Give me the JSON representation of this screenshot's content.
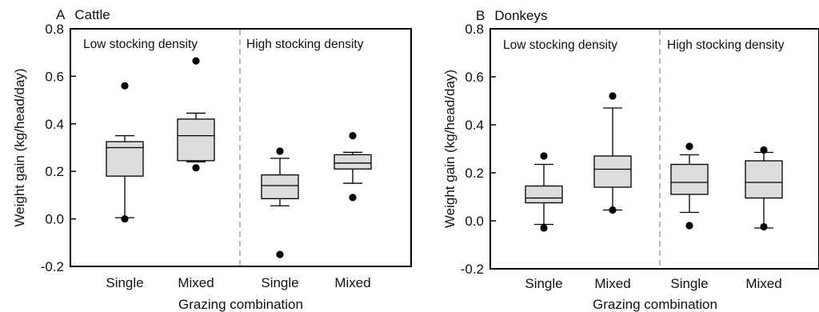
{
  "chart_data": [
    {
      "type": "box",
      "panel_letter": "A",
      "title": "Cattle",
      "ylabel": "Weight gain (kg/head/day)",
      "xlabel": "Grazing combination",
      "ylim": [
        -0.2,
        0.8
      ],
      "yticks": [
        -0.2,
        0.0,
        0.2,
        0.4,
        0.6,
        0.8
      ],
      "ytick_labels": [
        "-0.2",
        "0.0",
        "0.2",
        "0.4",
        "0.6",
        "0.8"
      ],
      "regions": [
        "Low stocking density",
        "High stocking density"
      ],
      "boxes": [
        {
          "label": "Single",
          "whisker_low": 0.005,
          "q1": 0.18,
          "median": 0.3,
          "q3": 0.325,
          "whisker_high": 0.35,
          "outliers": [
            0.56,
            0.0
          ]
        },
        {
          "label": "Mixed",
          "whisker_low": 0.24,
          "q1": 0.245,
          "median": 0.35,
          "q3": 0.42,
          "whisker_high": 0.445,
          "outliers": [
            0.665,
            0.215
          ]
        },
        {
          "label": "Single",
          "whisker_low": 0.055,
          "q1": 0.085,
          "median": 0.14,
          "q3": 0.185,
          "whisker_high": 0.255,
          "outliers": [
            0.285,
            -0.15
          ]
        },
        {
          "label": "Mixed",
          "whisker_low": 0.15,
          "q1": 0.21,
          "median": 0.235,
          "q3": 0.27,
          "whisker_high": 0.28,
          "outliers": [
            0.35,
            0.09
          ]
        }
      ],
      "legend": "none"
    },
    {
      "type": "box",
      "panel_letter": "B",
      "title": "Donkeys",
      "ylabel": "Weight gain (kg/head/day)",
      "xlabel": "Grazing combination",
      "ylim": [
        -0.2,
        0.8
      ],
      "yticks": [
        -0.2,
        0.0,
        0.2,
        0.4,
        0.6,
        0.8
      ],
      "ytick_labels": [
        "-0.2",
        "0.0",
        "0.2",
        "0.4",
        "0.6",
        "0.8"
      ],
      "regions": [
        "Low stocking density",
        "High stocking density"
      ],
      "boxes": [
        {
          "label": "Single",
          "whisker_low": -0.015,
          "q1": 0.075,
          "median": 0.095,
          "q3": 0.145,
          "whisker_high": 0.235,
          "outliers": [
            0.27,
            -0.03
          ]
        },
        {
          "label": "Mixed",
          "whisker_low": 0.045,
          "q1": 0.14,
          "median": 0.215,
          "q3": 0.27,
          "whisker_high": 0.47,
          "outliers": [
            0.52,
            0.045
          ]
        },
        {
          "label": "Single",
          "whisker_low": 0.035,
          "q1": 0.11,
          "median": 0.16,
          "q3": 0.235,
          "whisker_high": 0.275,
          "outliers": [
            0.31,
            -0.02
          ]
        },
        {
          "label": "Mixed",
          "whisker_low": -0.03,
          "q1": 0.095,
          "median": 0.16,
          "q3": 0.25,
          "whisker_high": 0.285,
          "outliers": [
            0.295,
            -0.025
          ]
        }
      ],
      "legend": "none"
    }
  ]
}
